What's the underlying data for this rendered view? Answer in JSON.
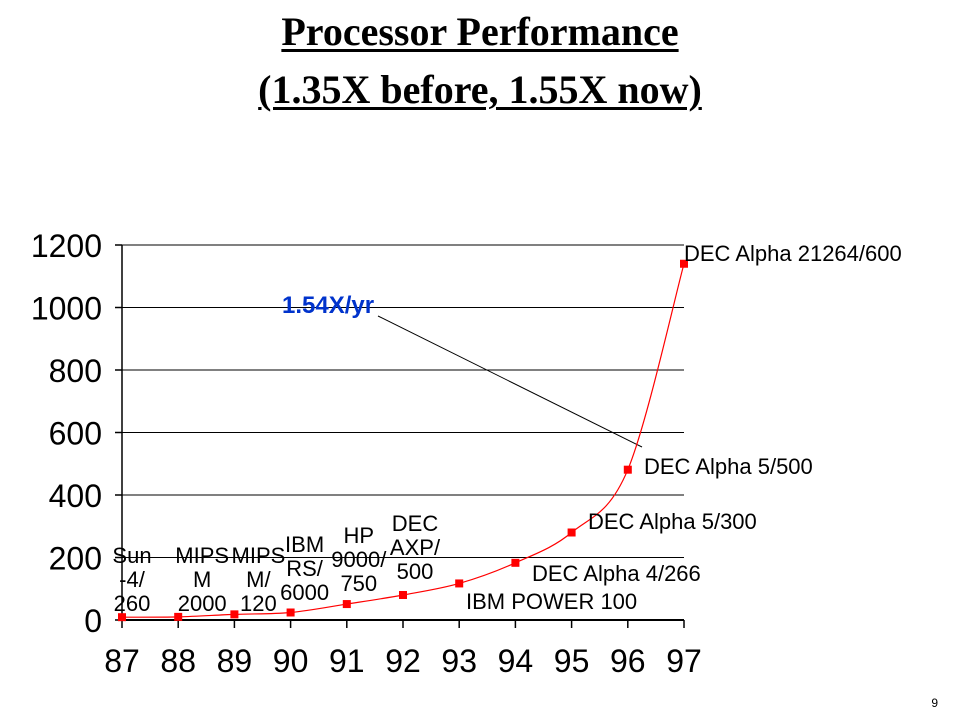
{
  "slide": {
    "title_line1": "Processor Performance",
    "title_line2": "(1.35X before, 1.55X now)",
    "page_number": "9"
  },
  "colors": {
    "series": "#ff0000",
    "annotation": "#0033cc",
    "grid": "#000000"
  },
  "chart_data": {
    "type": "line",
    "title": "",
    "xlabel": "",
    "ylabel": "",
    "x": [
      "87",
      "88",
      "89",
      "90",
      "91",
      "92",
      "93",
      "94",
      "95",
      "96",
      "97"
    ],
    "ylim": [
      0,
      1200
    ],
    "yticks": [
      0,
      200,
      400,
      600,
      800,
      1000,
      1200
    ],
    "grid": "horizontal",
    "series": [
      {
        "values": [
          9,
          10,
          18,
          24,
          51,
          80,
          117,
          183,
          280,
          481,
          1140
        ]
      }
    ],
    "point_labels": [
      {
        "x": "87",
        "lines": [
          "Sun",
          "-4/",
          "260"
        ]
      },
      {
        "x": "88",
        "lines": [
          "MIPS",
          "M",
          "2000"
        ]
      },
      {
        "x": "89",
        "lines": [
          "MIPS",
          "M/",
          "120"
        ]
      },
      {
        "x": "90",
        "lines": [
          "IBM",
          "RS/",
          "6000"
        ]
      },
      {
        "x": "91",
        "lines": [
          "HP",
          "9000/",
          "750"
        ]
      },
      {
        "x": "92",
        "lines": [
          "DEC",
          "AXP/",
          "500"
        ]
      },
      {
        "x": "93",
        "lines": [
          "IBM POWER 100"
        ]
      },
      {
        "x": "94",
        "lines": [
          "DEC Alpha 4/266"
        ]
      },
      {
        "x": "95",
        "lines": [
          "DEC Alpha 5/300"
        ]
      },
      {
        "x": "96",
        "lines": [
          "DEC Alpha 5/500"
        ]
      },
      {
        "x": "97",
        "lines": [
          "DEC Alpha 21264/600"
        ]
      }
    ],
    "annotation": "1.54X/yr"
  }
}
